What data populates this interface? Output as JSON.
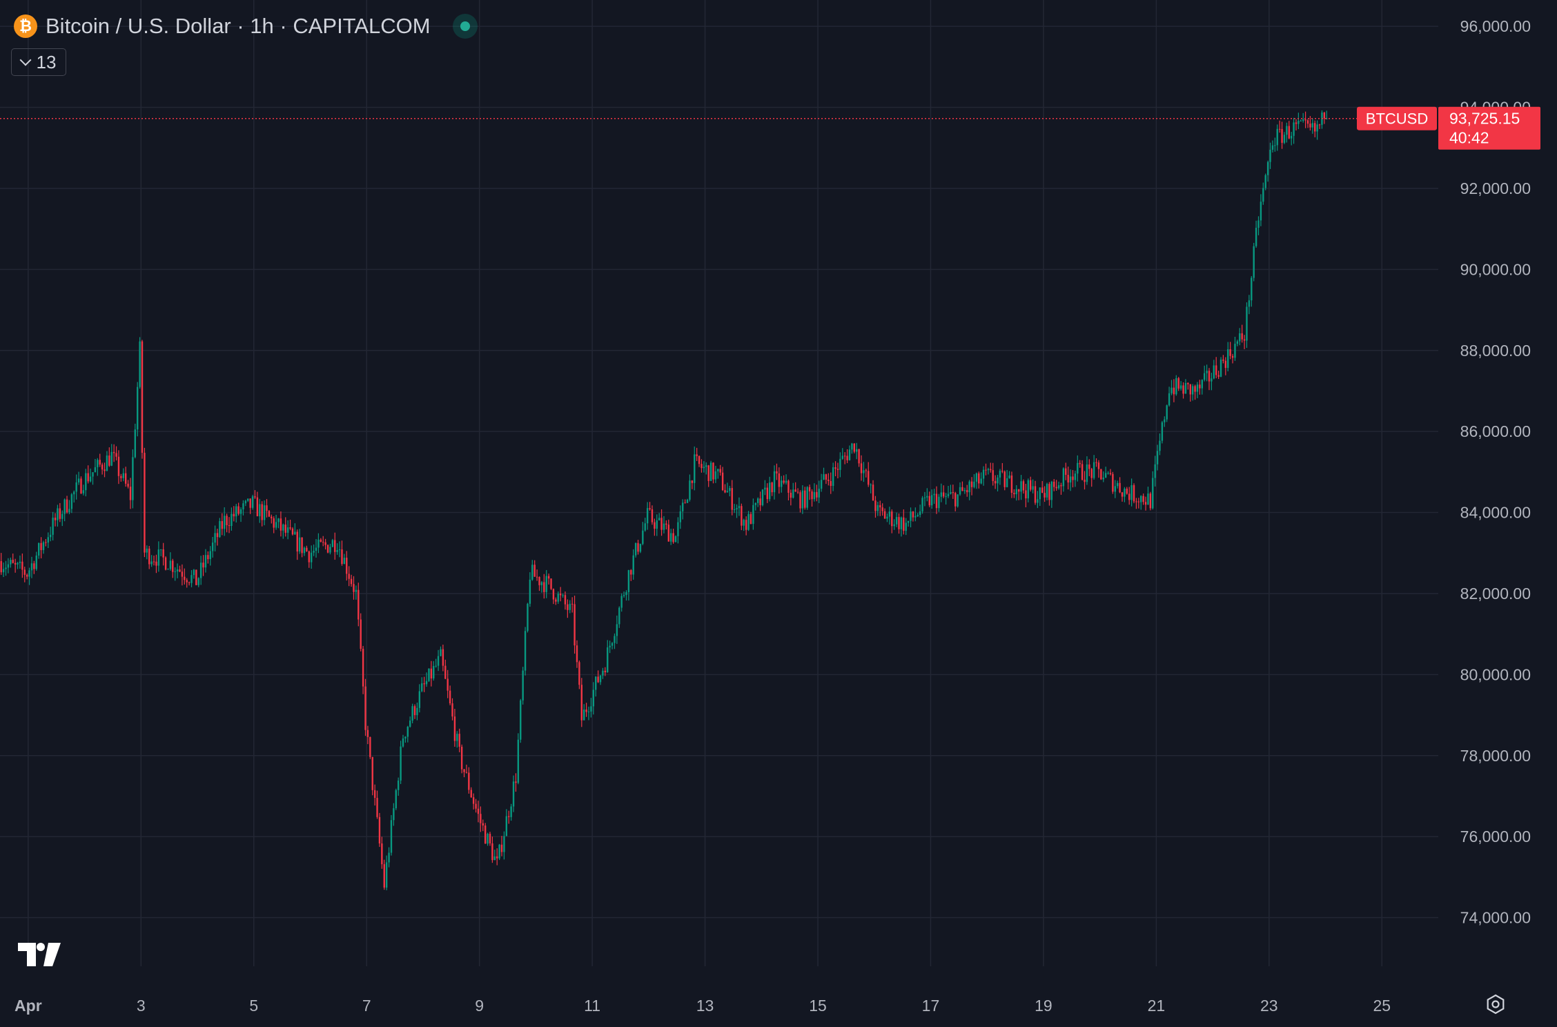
{
  "header": {
    "coin_icon": "bitcoin-icon",
    "title": "Bitcoin / U.S. Dollar · 1h · CAPITALCOM",
    "indicators_count": "13"
  },
  "price_label": {
    "symbol": "BTCUSD",
    "price": "93,725.15",
    "countdown": "40:42"
  },
  "colors": {
    "background": "#131722",
    "grid": "#232734",
    "up": "#089981",
    "down": "#f23645",
    "text": "#b2b5be"
  },
  "chart_data": {
    "type": "candlestick",
    "interval": "1h",
    "x_range": [
      "2025-03-31T12:00",
      "2025-04-26T00:00"
    ],
    "y_range": [
      72800,
      96650
    ],
    "y_ticks": [
      74000,
      76000,
      78000,
      80000,
      82000,
      84000,
      86000,
      88000,
      90000,
      92000,
      94000,
      96000
    ],
    "y_tick_labels": [
      "74,000.00",
      "76,000.00",
      "78,000.00",
      "80,000.00",
      "82,000.00",
      "84,000.00",
      "86,000.00",
      "88,000.00",
      "90,000.00",
      "92,000.00",
      "94,000.00",
      "96,000.00"
    ],
    "x_ticks": [
      {
        "label": "Apr",
        "date": "2025-04-01",
        "bold": true
      },
      {
        "label": "3",
        "date": "2025-04-03"
      },
      {
        "label": "5",
        "date": "2025-04-05"
      },
      {
        "label": "7",
        "date": "2025-04-07"
      },
      {
        "label": "9",
        "date": "2025-04-09"
      },
      {
        "label": "11",
        "date": "2025-04-11"
      },
      {
        "label": "13",
        "date": "2025-04-13"
      },
      {
        "label": "15",
        "date": "2025-04-15"
      },
      {
        "label": "17",
        "date": "2025-04-17"
      },
      {
        "label": "19",
        "date": "2025-04-19"
      },
      {
        "label": "21",
        "date": "2025-04-21"
      },
      {
        "label": "23",
        "date": "2025-04-23"
      },
      {
        "label": "25",
        "date": "2025-04-25"
      }
    ],
    "last_price": 93725.15,
    "price_path": [
      [
        "2025-03-31T12:00",
        82800
      ],
      [
        "2025-04-01T00:00",
        82500
      ],
      [
        "2025-04-01T12:00",
        83800
      ],
      [
        "2025-04-02T00:00",
        84800
      ],
      [
        "2025-04-02T12:00",
        85400
      ],
      [
        "2025-04-02T20:00",
        84400
      ],
      [
        "2025-04-03T00:00",
        88000
      ],
      [
        "2025-04-03T02:00",
        83000
      ],
      [
        "2025-04-03T12:00",
        82800
      ],
      [
        "2025-04-04T00:00",
        82300
      ],
      [
        "2025-04-04T12:00",
        83800
      ],
      [
        "2025-04-05T00:00",
        84200
      ],
      [
        "2025-04-05T12:00",
        83600
      ],
      [
        "2025-04-06T00:00",
        83000
      ],
      [
        "2025-04-06T12:00",
        83300
      ],
      [
        "2025-04-06T20:00",
        82000
      ],
      [
        "2025-04-07T00:00",
        78800
      ],
      [
        "2025-04-07T08:00",
        74800
      ],
      [
        "2025-04-07T16:00",
        78500
      ],
      [
        "2025-04-08T00:00",
        79600
      ],
      [
        "2025-04-08T08:00",
        80400
      ],
      [
        "2025-04-08T16:00",
        78000
      ],
      [
        "2025-04-09T00:00",
        76500
      ],
      [
        "2025-04-09T08:00",
        75300
      ],
      [
        "2025-04-09T16:00",
        77500
      ],
      [
        "2025-04-09T22:00",
        82500
      ],
      [
        "2025-04-10T06:00",
        82200
      ],
      [
        "2025-04-10T16:00",
        81500
      ],
      [
        "2025-04-10T20:00",
        78900
      ],
      [
        "2025-04-11T06:00",
        80300
      ],
      [
        "2025-04-11T16:00",
        82500
      ],
      [
        "2025-04-12T00:00",
        83900
      ],
      [
        "2025-04-12T12:00",
        83400
      ],
      [
        "2025-04-12T20:00",
        85200
      ],
      [
        "2025-04-13T06:00",
        84900
      ],
      [
        "2025-04-13T18:00",
        83700
      ],
      [
        "2025-04-14T06:00",
        84800
      ],
      [
        "2025-04-14T18:00",
        84300
      ],
      [
        "2025-04-15T06:00",
        84900
      ],
      [
        "2025-04-15T16:00",
        85700
      ],
      [
        "2025-04-16T02:00",
        84000
      ],
      [
        "2025-04-16T14:00",
        83700
      ],
      [
        "2025-04-17T00:00",
        84300
      ],
      [
        "2025-04-17T12:00",
        84400
      ],
      [
        "2025-04-18T00:00",
        84900
      ],
      [
        "2025-04-18T12:00",
        84700
      ],
      [
        "2025-04-19T00:00",
        84400
      ],
      [
        "2025-04-19T12:00",
        85000
      ],
      [
        "2025-04-20T00:00",
        85000
      ],
      [
        "2025-04-20T12:00",
        84500
      ],
      [
        "2025-04-20T22:00",
        84300
      ],
      [
        "2025-04-21T06:00",
        87100
      ],
      [
        "2025-04-21T18:00",
        87000
      ],
      [
        "2025-04-22T06:00",
        87800
      ],
      [
        "2025-04-22T14:00",
        88400
      ],
      [
        "2025-04-22T20:00",
        91300
      ],
      [
        "2025-04-23T02:00",
        93200
      ],
      [
        "2025-04-23T12:00",
        93500
      ],
      [
        "2025-04-23T20:00",
        93400
      ],
      [
        "2025-04-24T00:00",
        93725.15
      ]
    ]
  }
}
